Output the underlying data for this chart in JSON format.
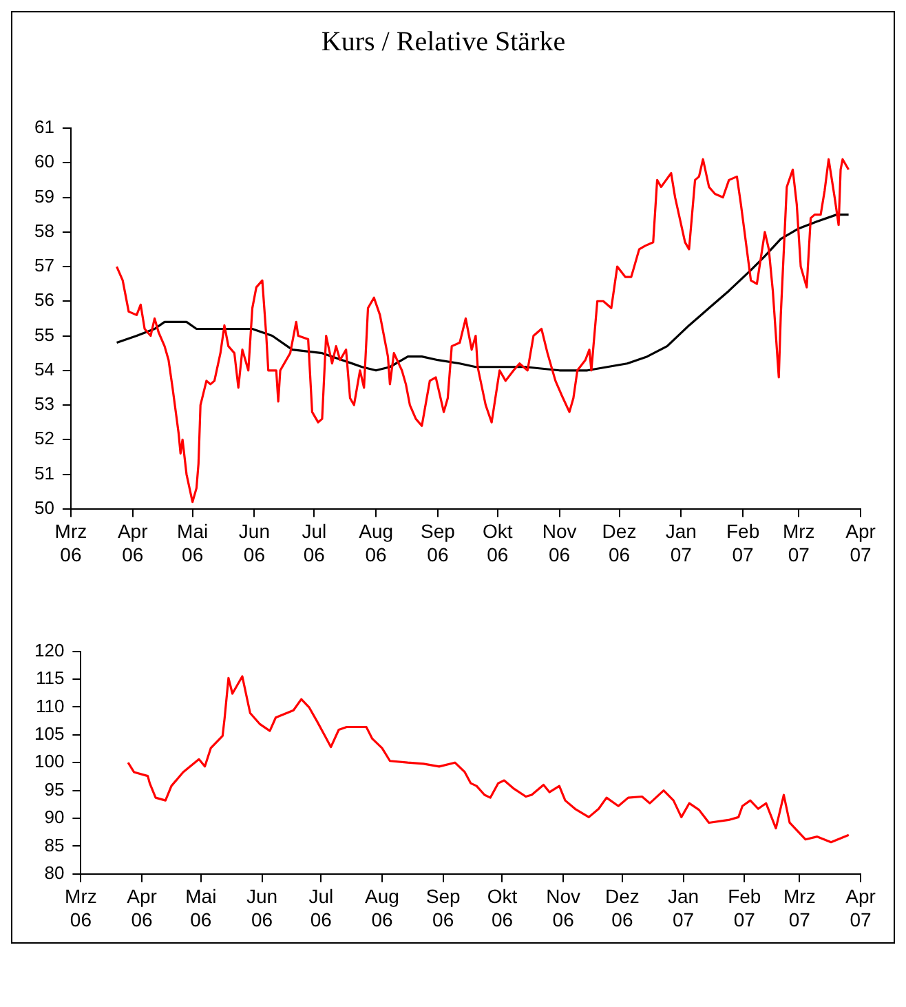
{
  "chart_data": [
    {
      "type": "line",
      "title": "Kurs / Relative Stärke",
      "xlim": [
        "2006-03-01",
        "2007-04-01"
      ],
      "ylim": [
        50,
        61
      ],
      "yticks": [
        50,
        51,
        52,
        53,
        54,
        55,
        56,
        57,
        58,
        59,
        60,
        61
      ],
      "xticks": [
        {
          "value": "2006-03-01",
          "label": "Mrz 06"
        },
        {
          "value": "2006-04-01",
          "label": "Apr 06"
        },
        {
          "value": "2006-05-01",
          "label": "Mai 06"
        },
        {
          "value": "2006-06-01",
          "label": "Jun 06"
        },
        {
          "value": "2006-07-01",
          "label": "Jul 06"
        },
        {
          "value": "2006-08-01",
          "label": "Aug 06"
        },
        {
          "value": "2006-09-01",
          "label": "Sep 06"
        },
        {
          "value": "2006-10-01",
          "label": "Okt 06"
        },
        {
          "value": "2006-11-01",
          "label": "Nov 06"
        },
        {
          "value": "2006-12-01",
          "label": "Dez 06"
        },
        {
          "value": "2007-01-01",
          "label": "Jan 07"
        },
        {
          "value": "2007-02-01",
          "label": "Feb 07"
        },
        {
          "value": "2007-03-01",
          "label": "Mrz 07"
        },
        {
          "value": "2007-04-01",
          "label": "Apr 07"
        }
      ],
      "grid": false,
      "legend": false,
      "marker": "none",
      "line_style": "solid",
      "series": [
        {
          "color": "#ff0000",
          "x": [
            "2006-03-24",
            "2006-03-27",
            "2006-03-30",
            "2006-04-03",
            "2006-04-05",
            "2006-04-07",
            "2006-04-10",
            "2006-04-12",
            "2006-04-14",
            "2006-04-17",
            "2006-04-19",
            "2006-04-21",
            "2006-04-24",
            "2006-04-25",
            "2006-04-26",
            "2006-04-28",
            "2006-05-01",
            "2006-05-03",
            "2006-05-04",
            "2006-05-05",
            "2006-05-08",
            "2006-05-10",
            "2006-05-12",
            "2006-05-15",
            "2006-05-17",
            "2006-05-19",
            "2006-05-22",
            "2006-05-24",
            "2006-05-26",
            "2006-05-29",
            "2006-05-31",
            "2006-06-02",
            "2006-06-05",
            "2006-06-07",
            "2006-06-08",
            "2006-06-12",
            "2006-06-13",
            "2006-06-14",
            "2006-06-19",
            "2006-06-22",
            "2006-06-23",
            "2006-06-28",
            "2006-06-30",
            "2006-07-03",
            "2006-07-05",
            "2006-07-07",
            "2006-07-10",
            "2006-07-12",
            "2006-07-14",
            "2006-07-17",
            "2006-07-19",
            "2006-07-21",
            "2006-07-24",
            "2006-07-26",
            "2006-07-28",
            "2006-07-31",
            "2006-08-03",
            "2006-08-07",
            "2006-08-08",
            "2006-08-10",
            "2006-08-14",
            "2006-08-16",
            "2006-08-18",
            "2006-08-21",
            "2006-08-24",
            "2006-08-28",
            "2006-08-31",
            "2006-09-04",
            "2006-09-06",
            "2006-09-08",
            "2006-09-12",
            "2006-09-15",
            "2006-09-18",
            "2006-09-20",
            "2006-09-21",
            "2006-09-25",
            "2006-09-28",
            "2006-10-02",
            "2006-10-05",
            "2006-10-09",
            "2006-10-12",
            "2006-10-16",
            "2006-10-19",
            "2006-10-23",
            "2006-10-26",
            "2006-10-30",
            "2006-11-02",
            "2006-11-06",
            "2006-11-08",
            "2006-11-10",
            "2006-11-14",
            "2006-11-16",
            "2006-11-17",
            "2006-11-20",
            "2006-11-23",
            "2006-11-27",
            "2006-11-30",
            "2006-12-04",
            "2006-12-07",
            "2006-12-11",
            "2006-12-14",
            "2006-12-18",
            "2006-12-20",
            "2006-12-22",
            "2006-12-27",
            "2006-12-29",
            "2007-01-03",
            "2007-01-05",
            "2007-01-08",
            "2007-01-10",
            "2007-01-12",
            "2007-01-15",
            "2007-01-18",
            "2007-01-22",
            "2007-01-25",
            "2007-01-29",
            "2007-01-31",
            "2007-02-05",
            "2007-02-08",
            "2007-02-12",
            "2007-02-14",
            "2007-02-16",
            "2007-02-19",
            "2007-02-20",
            "2007-02-23",
            "2007-02-26",
            "2007-02-28",
            "2007-03-02",
            "2007-03-05",
            "2007-03-07",
            "2007-03-09",
            "2007-03-12",
            "2007-03-14",
            "2007-03-16",
            "2007-03-19",
            "2007-03-21",
            "2007-03-22",
            "2007-03-23",
            "2007-03-26"
          ],
          "values": [
            57.0,
            56.6,
            55.7,
            55.6,
            55.9,
            55.2,
            55.0,
            55.5,
            55.1,
            54.7,
            54.3,
            53.5,
            52.2,
            51.6,
            52.0,
            51.0,
            50.2,
            50.6,
            51.3,
            53.0,
            53.7,
            53.6,
            53.7,
            54.5,
            55.3,
            54.7,
            54.5,
            53.5,
            54.6,
            54.0,
            55.8,
            56.4,
            56.6,
            55.0,
            54.0,
            54.0,
            53.1,
            54.0,
            54.5,
            55.4,
            55.0,
            54.9,
            52.8,
            52.5,
            52.6,
            55.0,
            54.2,
            54.7,
            54.3,
            54.6,
            53.2,
            53.0,
            54.0,
            53.5,
            55.8,
            56.1,
            55.6,
            54.4,
            53.6,
            54.5,
            54.0,
            53.6,
            53.0,
            52.6,
            52.4,
            53.7,
            53.8,
            52.8,
            53.2,
            54.7,
            54.8,
            55.5,
            54.6,
            55.0,
            54.1,
            53.0,
            52.5,
            54.0,
            53.7,
            54.0,
            54.2,
            54.0,
            55.0,
            55.2,
            54.5,
            53.7,
            53.3,
            52.8,
            53.2,
            54.0,
            54.3,
            54.6,
            54.0,
            56.0,
            56.0,
            55.8,
            57.0,
            56.7,
            56.7,
            57.5,
            57.6,
            57.7,
            59.5,
            59.3,
            59.7,
            59.0,
            57.7,
            57.5,
            59.5,
            59.6,
            60.1,
            59.3,
            59.1,
            59.0,
            59.5,
            59.6,
            58.8,
            56.6,
            56.5,
            58.0,
            57.5,
            56.3,
            53.8,
            55.6,
            59.3,
            59.8,
            58.8,
            57.0,
            56.4,
            58.4,
            58.5,
            58.5,
            59.2,
            60.1,
            59.0,
            58.2,
            59.8,
            60.1,
            59.8
          ]
        },
        {
          "color": "#000000",
          "x": [
            "2006-03-24",
            "2006-04-03",
            "2006-04-12",
            "2006-04-17",
            "2006-04-28",
            "2006-05-03",
            "2006-05-31",
            "2006-06-10",
            "2006-06-20",
            "2006-07-05",
            "2006-07-15",
            "2006-07-25",
            "2006-08-01",
            "2006-08-08",
            "2006-08-17",
            "2006-08-24",
            "2006-09-01",
            "2006-09-12",
            "2006-09-20",
            "2006-10-02",
            "2006-10-15",
            "2006-11-01",
            "2006-11-15",
            "2006-11-25",
            "2006-12-05",
            "2006-12-15",
            "2006-12-25",
            "2007-01-05",
            "2007-01-15",
            "2007-01-25",
            "2007-02-05",
            "2007-02-12",
            "2007-02-20",
            "2007-03-01",
            "2007-03-10",
            "2007-03-20",
            "2007-03-26"
          ],
          "values": [
            54.8,
            55.0,
            55.2,
            55.4,
            55.4,
            55.2,
            55.2,
            55.0,
            54.6,
            54.5,
            54.3,
            54.1,
            54.0,
            54.1,
            54.4,
            54.4,
            54.3,
            54.2,
            54.1,
            54.1,
            54.1,
            54.0,
            54.0,
            54.1,
            54.2,
            54.4,
            54.7,
            55.3,
            55.8,
            56.3,
            56.9,
            57.3,
            57.8,
            58.1,
            58.3,
            58.5,
            58.5
          ]
        }
      ]
    },
    {
      "type": "line",
      "xlim": [
        "2006-03-01",
        "2007-04-01"
      ],
      "ylim": [
        80,
        120
      ],
      "yticks": [
        80,
        85,
        90,
        95,
        100,
        105,
        110,
        115,
        120
      ],
      "xticks": [
        {
          "value": "2006-03-01",
          "label": "Mrz 06"
        },
        {
          "value": "2006-04-01",
          "label": "Apr 06"
        },
        {
          "value": "2006-05-01",
          "label": "Mai 06"
        },
        {
          "value": "2006-06-01",
          "label": "Jun 06"
        },
        {
          "value": "2006-07-01",
          "label": "Jul 06"
        },
        {
          "value": "2006-08-01",
          "label": "Aug 06"
        },
        {
          "value": "2006-09-01",
          "label": "Sep 06"
        },
        {
          "value": "2006-10-01",
          "label": "Okt 06"
        },
        {
          "value": "2006-11-01",
          "label": "Nov 06"
        },
        {
          "value": "2006-12-01",
          "label": "Dez 06"
        },
        {
          "value": "2007-01-01",
          "label": "Jan 07"
        },
        {
          "value": "2007-02-01",
          "label": "Feb 07"
        },
        {
          "value": "2007-03-01",
          "label": "Mrz 07"
        },
        {
          "value": "2007-04-01",
          "label": "Apr 07"
        }
      ],
      "grid": false,
      "legend": false,
      "marker": "none",
      "line_style": "solid",
      "series": [
        {
          "color": "#ff0000",
          "x": [
            "2006-03-25",
            "2006-03-28",
            "2006-04-04",
            "2006-04-05",
            "2006-04-08",
            "2006-04-13",
            "2006-04-16",
            "2006-04-22",
            "2006-04-30",
            "2006-05-03",
            "2006-05-06",
            "2006-05-12",
            "2006-05-13",
            "2006-05-15",
            "2006-05-17",
            "2006-05-22",
            "2006-05-26",
            "2006-05-31",
            "2006-06-05",
            "2006-06-08",
            "2006-06-17",
            "2006-06-21",
            "2006-06-25",
            "2006-06-29",
            "2006-07-03",
            "2006-07-06",
            "2006-07-10",
            "2006-07-14",
            "2006-07-24",
            "2006-07-27",
            "2006-08-01",
            "2006-08-05",
            "2006-08-14",
            "2006-08-22",
            "2006-08-30",
            "2006-09-07",
            "2006-09-12",
            "2006-09-15",
            "2006-09-18",
            "2006-09-22",
            "2006-09-25",
            "2006-09-29",
            "2006-10-02",
            "2006-10-07",
            "2006-10-13",
            "2006-10-16",
            "2006-10-22",
            "2006-10-25",
            "2006-10-30",
            "2006-11-02",
            "2006-11-07",
            "2006-11-14",
            "2006-11-19",
            "2006-11-23",
            "2006-11-29",
            "2006-12-04",
            "2006-12-11",
            "2006-12-15",
            "2006-12-22",
            "2006-12-27",
            "2006-12-31",
            "2007-01-04",
            "2007-01-09",
            "2007-01-14",
            "2007-01-24",
            "2007-01-29",
            "2007-01-31",
            "2007-02-04",
            "2007-02-08",
            "2007-02-12",
            "2007-02-17",
            "2007-02-21",
            "2007-02-24",
            "2007-03-04",
            "2007-03-10",
            "2007-03-17",
            "2007-03-26"
          ],
          "values": [
            100,
            98.3,
            97.6,
            96.3,
            93.7,
            93.2,
            95.8,
            98.3,
            100.6,
            99.3,
            102.6,
            104.8,
            107.9,
            115.2,
            112.4,
            115.5,
            108.9,
            106.9,
            105.7,
            108.1,
            109.4,
            111.4,
            109.9,
            107.4,
            104.8,
            102.8,
            105.9,
            106.4,
            106.4,
            104.3,
            102.6,
            100.3,
            100,
            99.8,
            99.3,
            100,
            98.3,
            96.3,
            95.8,
            94.2,
            93.7,
            96.3,
            96.8,
            95.3,
            93.9,
            94.2,
            96,
            94.7,
            95.8,
            93.2,
            91.7,
            90.2,
            91.7,
            93.7,
            92.2,
            93.7,
            93.9,
            92.7,
            95,
            93.2,
            90.2,
            92.7,
            91.5,
            89.2,
            89.7,
            90.2,
            92.2,
            93.2,
            91.7,
            92.7,
            88.2,
            94.2,
            89.2,
            86.2,
            86.7,
            85.7,
            87
          ]
        }
      ]
    }
  ]
}
